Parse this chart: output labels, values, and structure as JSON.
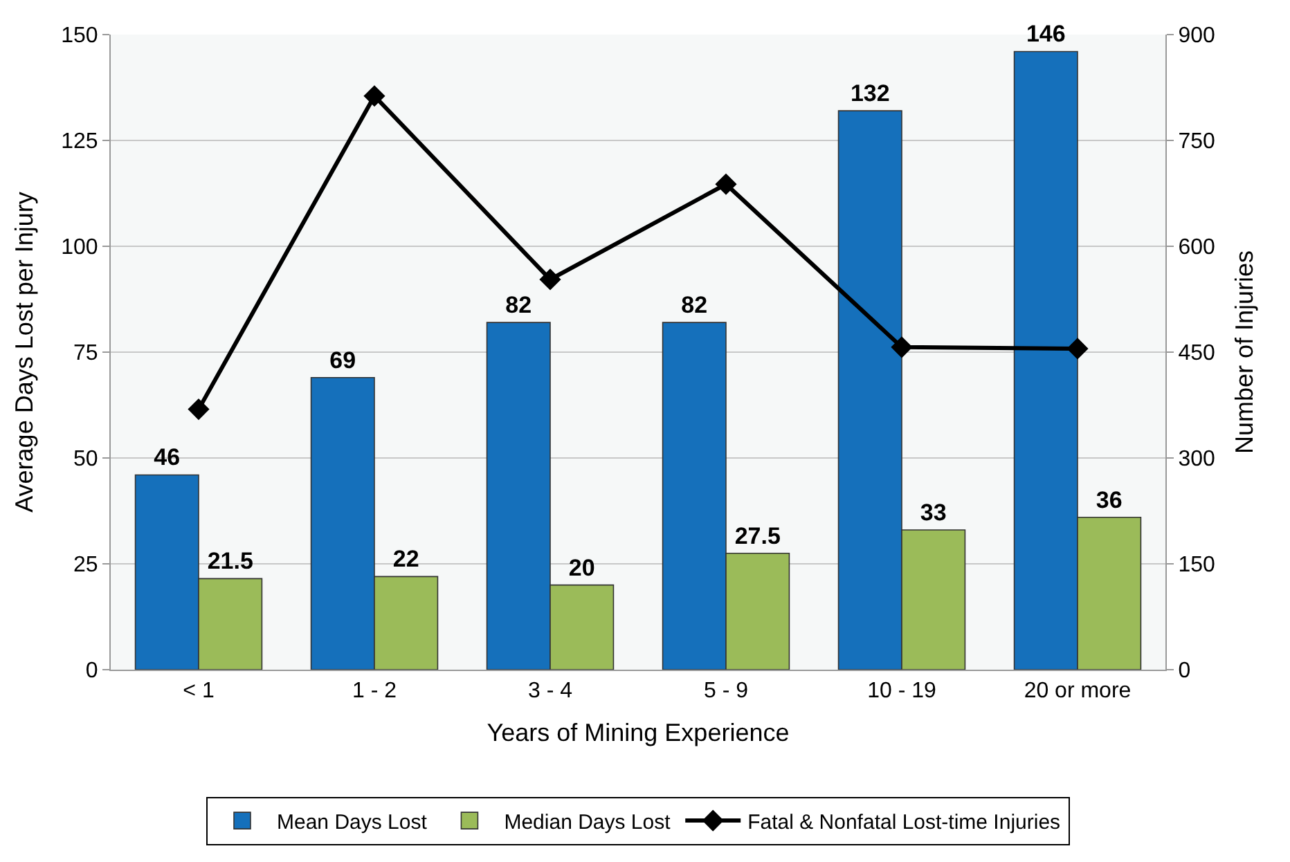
{
  "chart_data": {
    "type": "bar",
    "xlabel": "Years of Mining Experience",
    "ylabel": "Average Days Lost per Injury",
    "y2label": "Number of Injuries",
    "categories": [
      "< 1",
      "1 - 2",
      "3 - 4",
      "5 - 9",
      "10 - 19",
      "20 or more"
    ],
    "series": [
      {
        "name": "Mean Days Lost",
        "color": "#1570bb",
        "values": [
          46,
          69,
          82,
          82,
          132,
          146
        ],
        "value_labels": [
          "46",
          "69",
          "82",
          "82",
          "132",
          "146"
        ]
      },
      {
        "name": "Median Days Lost",
        "color": "#9bbb59",
        "values": [
          21.5,
          22,
          20,
          27.5,
          33,
          36
        ],
        "value_labels": [
          "21.5",
          "22",
          "20",
          "27.5",
          "33",
          "36"
        ]
      },
      {
        "name": "Fatal & Nonfatal Lost-time Injuries",
        "type": "line",
        "axis": "y2",
        "color": "#000000",
        "marker": "diamond",
        "values": [
          369,
          813,
          553,
          688,
          457,
          455
        ]
      }
    ],
    "ylim": [
      0,
      150
    ],
    "yticks": [
      0,
      25,
      50,
      75,
      100,
      125,
      150
    ],
    "y2lim": [
      0,
      900
    ],
    "y2ticks": [
      0,
      150,
      300,
      450,
      600,
      750,
      900
    ],
    "grid": "y",
    "legend": "bottom"
  }
}
